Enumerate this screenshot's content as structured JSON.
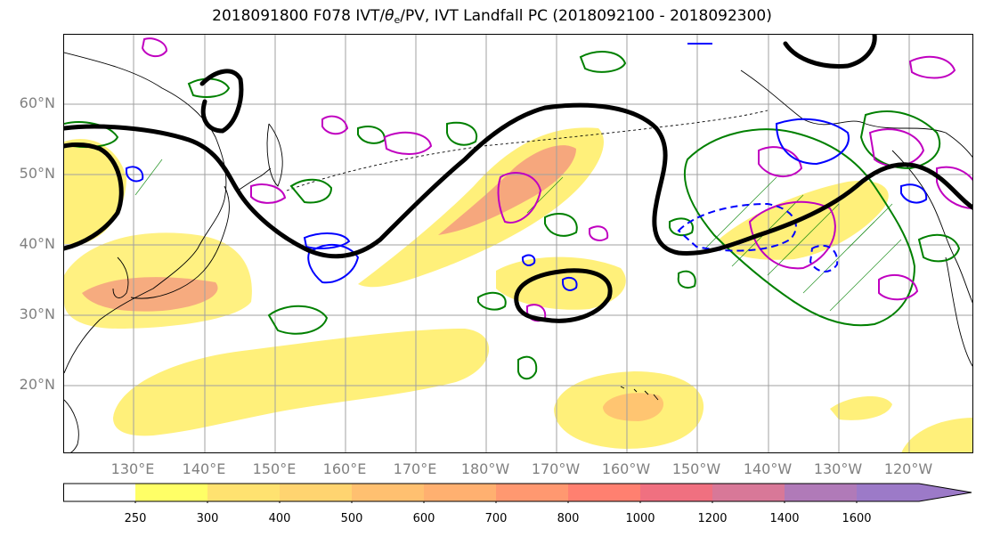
{
  "title": {
    "prefix": "2018091800 F078 IVT/",
    "theta_symbol": "θ",
    "theta_sub": "e",
    "suffix": "/PV, IVT Landfall PC (2018092100 - 2018092300)"
  },
  "map": {
    "lat_labels": [
      "60°N",
      "50°N",
      "40°N",
      "30°N",
      "20°N"
    ],
    "lon_labels": [
      "130°E",
      "140°E",
      "150°E",
      "160°E",
      "170°E",
      "180°W",
      "170°W",
      "160°W",
      "150°W",
      "140°W",
      "130°W",
      "120°W"
    ],
    "colors": {
      "pv_contour": "#000000",
      "theta_e_contour": "#c000c0",
      "ivt_contour": "#0000ff",
      "landfall_pc_contour": "#008000",
      "coastline": "#000000",
      "gridline": "#a0a0a0"
    }
  },
  "colorbar": {
    "ticks": [
      "250",
      "300",
      "400",
      "500",
      "600",
      "700",
      "800",
      "1000",
      "1200",
      "1400",
      "1600"
    ],
    "colors": [
      "#ffffff",
      "#ffff66",
      "#ffe270",
      "#ffd470",
      "#ffc070",
      "#ffb070",
      "#ff9870",
      "#ff8070",
      "#f07080",
      "#d87898",
      "#b07ab8",
      "#9c7ac8"
    ]
  }
}
